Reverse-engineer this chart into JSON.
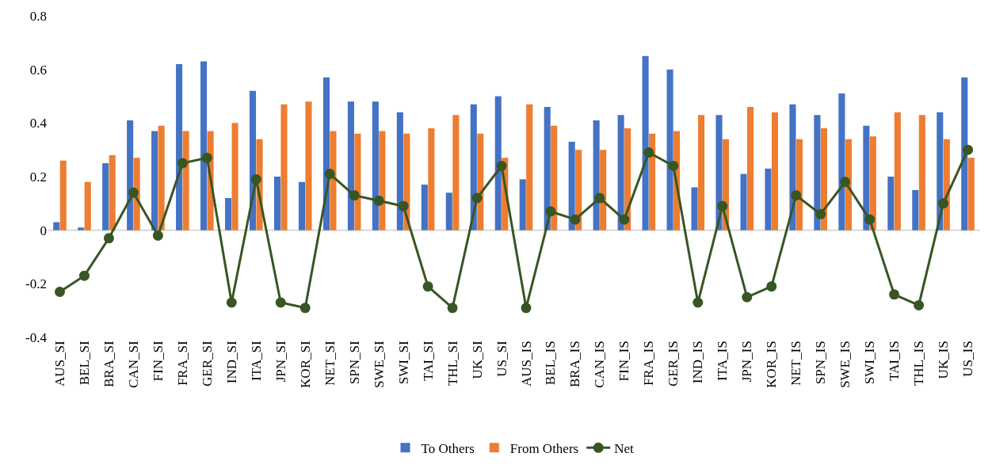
{
  "chart_data": {
    "type": "bar",
    "categories": [
      "AUS_SI",
      "BEL_SI",
      "BRA_SI",
      "CAN_SI",
      "FIN_SI",
      "FRA_SI",
      "GER_SI",
      "IND_SI",
      "ITA_SI",
      "JPN_SI",
      "KOR_SI",
      "NET_SI",
      "SPN_SI",
      "SWE_SI",
      "SWI_SI",
      "TAI_SI",
      "THL_SI",
      "UK_SI",
      "US_SI",
      "AUS_IS",
      "BEL_IS",
      "BRA_IS",
      "CAN_IS",
      "FIN_IS",
      "FRA_IS",
      "GER_IS",
      "IND_IS",
      "ITA_IS",
      "JPN_IS",
      "KOR_IS",
      "NET_IS",
      "SPN_IS",
      "SWE_IS",
      "SWI_IS",
      "TAI_IS",
      "THL_IS",
      "UK_IS",
      "US_IS"
    ],
    "series": [
      {
        "name": "To Others",
        "color": "#4472c4",
        "values": [
          0.03,
          0.01,
          0.25,
          0.41,
          0.37,
          0.62,
          0.63,
          0.12,
          0.52,
          0.2,
          0.18,
          0.57,
          0.48,
          0.48,
          0.44,
          0.17,
          0.14,
          0.47,
          0.5,
          0.19,
          0.46,
          0.33,
          0.41,
          0.43,
          0.65,
          0.6,
          0.16,
          0.43,
          0.21,
          0.23,
          0.47,
          0.43,
          0.51,
          0.39,
          0.2,
          0.15,
          0.44,
          0.57
        ]
      },
      {
        "name": "From Others",
        "color": "#ed7d31",
        "values": [
          0.26,
          0.18,
          0.28,
          0.27,
          0.39,
          0.37,
          0.37,
          0.4,
          0.34,
          0.47,
          0.48,
          0.37,
          0.36,
          0.37,
          0.36,
          0.38,
          0.43,
          0.36,
          0.27,
          0.47,
          0.39,
          0.3,
          0.3,
          0.38,
          0.36,
          0.37,
          0.43,
          0.34,
          0.46,
          0.44,
          0.34,
          0.38,
          0.34,
          0.35,
          0.44,
          0.43,
          0.34,
          0.27
        ]
      },
      {
        "name": "Net",
        "type": "line",
        "color": "#375623",
        "marker": "circle",
        "values": [
          -0.23,
          -0.17,
          -0.03,
          0.14,
          -0.02,
          0.25,
          0.27,
          -0.27,
          0.19,
          -0.27,
          -0.29,
          0.21,
          0.13,
          0.11,
          0.09,
          -0.21,
          -0.29,
          0.12,
          0.24,
          -0.29,
          0.07,
          0.04,
          0.12,
          0.04,
          0.29,
          0.24,
          -0.27,
          0.09,
          -0.25,
          -0.21,
          0.13,
          0.06,
          0.18,
          0.04,
          -0.24,
          -0.28,
          0.1,
          0.3
        ]
      }
    ],
    "ylim": [
      -0.4,
      0.8
    ],
    "yticks": [
      -0.4,
      -0.2,
      0,
      0.2,
      0.4,
      0.6,
      0.8
    ],
    "grid": false,
    "legend": "bottom",
    "ref_lines": [
      {
        "axis": "y",
        "value": 0,
        "color": "#d9d9d9"
      }
    ]
  }
}
